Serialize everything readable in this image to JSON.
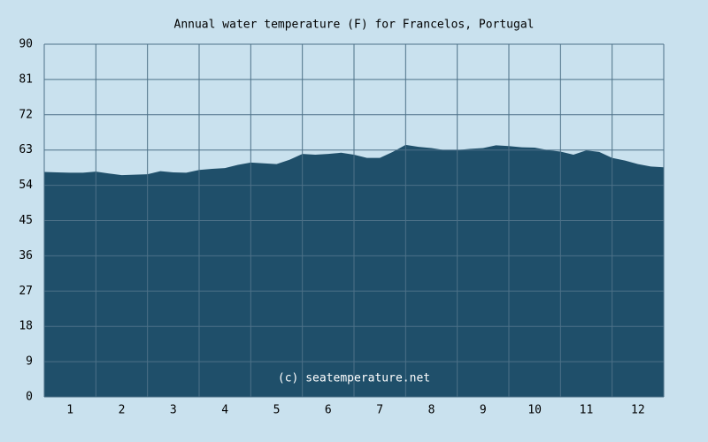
{
  "chart_data": {
    "type": "area",
    "title": "Annual water temperature (F) for Francelos, Portugal",
    "annotation": "(c) seatemperature.net",
    "x": [
      0,
      0.25,
      0.5,
      0.75,
      1,
      1.25,
      1.5,
      1.75,
      2,
      2.25,
      2.5,
      2.75,
      3,
      3.25,
      3.5,
      3.75,
      4,
      4.25,
      4.5,
      4.75,
      5,
      5.25,
      5.5,
      5.75,
      6,
      6.25,
      6.5,
      6.75,
      7,
      7.25,
      7.5,
      7.75,
      8,
      8.25,
      8.5,
      8.75,
      9,
      9.25,
      9.5,
      9.75,
      10,
      10.25,
      10.5,
      10.75,
      11,
      11.25,
      11.5,
      11.75,
      12
    ],
    "values": [
      57.4,
      57.3,
      57.2,
      57.2,
      57.5,
      57.0,
      56.6,
      56.7,
      56.8,
      57.6,
      57.3,
      57.2,
      57.9,
      58.2,
      58.4,
      59.2,
      59.8,
      59.6,
      59.4,
      60.5,
      62.0,
      61.8,
      62.0,
      62.3,
      61.8,
      61.0,
      61.0,
      62.5,
      64.3,
      63.8,
      63.5,
      63.0,
      63.0,
      63.3,
      63.5,
      64.2,
      64.0,
      63.7,
      63.6,
      63.0,
      62.6,
      61.8,
      62.9,
      62.5,
      61.0,
      60.3,
      59.4,
      58.8,
      58.6
    ],
    "color": "#1f4f6a",
    "xlim": [
      0,
      12
    ],
    "xticks": [
      {
        "value": 0.5,
        "label": "1"
      },
      {
        "value": 1.5,
        "label": "2"
      },
      {
        "value": 2.5,
        "label": "3"
      },
      {
        "value": 3.5,
        "label": "4"
      },
      {
        "value": 4.5,
        "label": "5"
      },
      {
        "value": 5.5,
        "label": "6"
      },
      {
        "value": 6.5,
        "label": "7"
      },
      {
        "value": 7.5,
        "label": "8"
      },
      {
        "value": 8.5,
        "label": "9"
      },
      {
        "value": 9.5,
        "label": "10"
      },
      {
        "value": 10.5,
        "label": "11"
      },
      {
        "value": 11.5,
        "label": "12"
      }
    ],
    "ylim": [
      0,
      90
    ],
    "yticks": [
      0,
      9,
      18,
      27,
      36,
      45,
      54,
      63,
      72,
      81,
      90
    ],
    "grid": true
  }
}
